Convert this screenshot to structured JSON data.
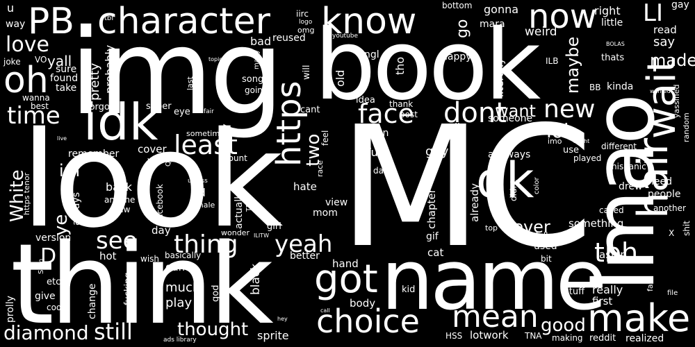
{
  "colors": {
    "background": "#000000",
    "text": "#ffffff"
  },
  "words": [
    "MC",
    "look",
    "think",
    "img",
    "book",
    "lmao",
    "name",
    "idk",
    "PB",
    "character",
    "know",
    "hair",
    "wait",
    "ok",
    "make",
    "choice",
    "got",
    "mean",
    "https",
    "dont",
    "face",
    "new",
    "now",
    "LI",
    "oh",
    "love",
    "time",
    "least",
    "thing",
    "yeah",
    "see",
    "still",
    "diamond",
    "thought",
    "tbh",
    "lol",
    "two",
    "want",
    "never",
    "im",
    "White",
    "ye",
    "D",
    "good",
    "maybe",
    "made",
    "say",
    "gay",
    "read",
    "u",
    "way",
    "right",
    "little",
    "gonna",
    "mara",
    "go",
    "weird",
    "bottom",
    "iirc",
    "tbf",
    "logo",
    "youtube",
    "omg",
    "reused",
    "bad",
    "ngl",
    "happy",
    "yall",
    "pretty",
    "probably",
    "sure",
    "found",
    "take",
    "VO",
    "joke",
    "wanna",
    "best",
    "forgot",
    "super",
    "topic",
    "many",
    "will",
    "old",
    "idea",
    "thank",
    "post",
    "tho",
    "literally",
    "ILB",
    "thats",
    "BOLAS",
    "kinda",
    "BB",
    "wanted",
    "yassified",
    "cant",
    "feel",
    "even",
    "well",
    "red",
    "someone",
    "imo",
    "might",
    "different",
    "random",
    "use",
    "played",
    "fun",
    "guy",
    "anyways",
    "eye",
    "fair",
    "live",
    "song",
    "going",
    "last",
    "sometimes",
    "remember",
    "cover",
    "yep",
    "QB",
    "count",
    "race",
    "dad",
    "chapter",
    "already",
    "color",
    "hispanic",
    "need",
    "people",
    "https tenor",
    "always",
    "back",
    "anyone",
    "saw",
    "facebook",
    "unless",
    "ad",
    "male",
    "actually",
    "TF",
    "hate",
    "view",
    "mom",
    "didnt",
    "drew",
    "called",
    "another",
    "shit",
    "X",
    "version",
    "irl",
    "day",
    "wonder",
    "ILITW",
    "girl",
    "gif",
    "top",
    "full",
    "used",
    "something",
    "asian",
    "hot",
    "wish",
    "basically",
    "better",
    "cat",
    "bit",
    "Sam",
    "etc",
    "give",
    "cool",
    "prolly",
    "fucking",
    "game",
    "much",
    "play",
    "god",
    "black",
    "hand",
    "body",
    "kid",
    "fan",
    "file",
    "stuff",
    "really",
    "first",
    "change",
    "hey",
    "call",
    "HSS",
    "lotwork",
    "TNA",
    "making",
    "reddit",
    "realized",
    "sprite",
    "ads library"
  ]
}
